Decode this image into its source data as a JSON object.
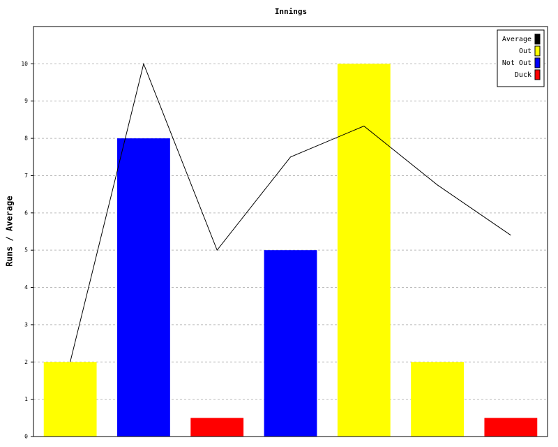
{
  "chart_data": {
    "type": "bar",
    "title": "Innings",
    "ylabel": "Runs / Average",
    "categories": [
      null,
      null,
      null,
      null,
      null,
      null,
      null
    ],
    "series": [
      {
        "name": "Average",
        "color": "#000000",
        "type": "line",
        "values": [
          2,
          10,
          5,
          7.5,
          8.33,
          6.75,
          5.4
        ]
      },
      {
        "name": "Out",
        "color": "#ffff00",
        "values": [
          2,
          null,
          null,
          null,
          10,
          2,
          null
        ]
      },
      {
        "name": "Not Out",
        "color": "#0000ff",
        "values": [
          null,
          8,
          null,
          5,
          null,
          null,
          null
        ]
      },
      {
        "name": "Duck",
        "color": "#ff0000",
        "values": [
          null,
          null,
          0.5,
          null,
          null,
          null,
          0.5
        ]
      }
    ],
    "ylim": [
      0,
      11
    ],
    "yticks": [
      0,
      1,
      2,
      3,
      4,
      5,
      6,
      7,
      8,
      9,
      10
    ],
    "grid": true,
    "legend": "top-right"
  }
}
